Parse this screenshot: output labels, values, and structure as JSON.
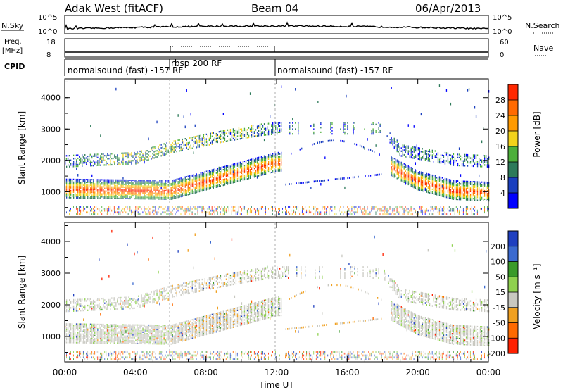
{
  "header": {
    "station": "Adak West (fitACF)",
    "beam": "Beam 04",
    "date": "06/Apr/2013"
  },
  "top_panels": {
    "nsky_label": "N.Sky",
    "nsky_ticks": [
      "10^5",
      "10^0"
    ],
    "nsearch_label": "N.Search",
    "freq_label": "Freq.",
    "freq_unit": "[MHz]",
    "freq_ticks": [
      "18",
      "8"
    ],
    "nave_label": "Nave",
    "nave_ticks": [
      "60",
      "0"
    ],
    "cpid_label": "CPID",
    "cpid_segments": [
      {
        "label": "normalsound (fast) -157 RF",
        "start_h": 0,
        "end_h": 12
      },
      {
        "label": "rbsp 200 RF",
        "start_h": 6,
        "end_h": 12
      },
      {
        "label": "normalsound (fast) -157 RF",
        "start_h": 12,
        "end_h": 24
      }
    ]
  },
  "x_axis": {
    "label": "Time UT",
    "ticks": [
      "00:00",
      "04:00",
      "08:00",
      "12:00",
      "16:00",
      "20:00",
      "00:00"
    ]
  },
  "power_panel": {
    "ylabel": "Slant Range [km]",
    "yticks": [
      "1000",
      "2000",
      "3000",
      "4000"
    ],
    "colorbar_label": "Power [dB]",
    "colorbar_ticks": [
      "4",
      "8",
      "12",
      "16",
      "20",
      "24",
      "28"
    ],
    "colors": [
      "#0000ff",
      "#1a3fbf",
      "#2d7a5a",
      "#4caf3a",
      "#f2d21b",
      "#ff9a00",
      "#ff6a00",
      "#ff2800"
    ]
  },
  "velocity_panel": {
    "ylabel": "Slant Range [km]",
    "yticks": [
      "1000",
      "2000",
      "3000",
      "4000"
    ],
    "colorbar_label": "Velocity [m s⁻¹]",
    "colorbar_ticks": [
      "200",
      "100",
      "50",
      "15",
      "-15",
      "-50",
      "-100",
      "-200"
    ],
    "colors": [
      "#1f3fbf",
      "#3b6ad0",
      "#3a9a2a",
      "#8fd14f",
      "#c8c8c0",
      "#f0a020",
      "#ff6a00",
      "#ff2000"
    ]
  },
  "chart_data": [
    {
      "type": "heatmap",
      "title": "Power",
      "xlabel": "Time UT",
      "ylabel": "Slant Range [km]",
      "xlim": [
        0,
        24
      ],
      "ylim": [
        200,
        4600
      ],
      "units": "dB",
      "bands": [
        {
          "name": "main",
          "range_km": [
            [
              0,
              1050
            ],
            [
              6,
              1000
            ],
            [
              8,
              1300
            ],
            [
              10,
              1600
            ],
            [
              12,
              1900
            ],
            [
              18,
              1900
            ],
            [
              20,
              1300
            ],
            [
              22,
              1000
            ],
            [
              24,
              950
            ]
          ]
        },
        {
          "name": "upper",
          "range_km": [
            [
              0,
              1950
            ],
            [
              4,
              2050
            ],
            [
              6,
              2400
            ],
            [
              9,
              2750
            ],
            [
              11,
              2950
            ],
            [
              12,
              3000
            ],
            [
              18,
              3000
            ],
            [
              19,
              2300
            ],
            [
              22,
              2000
            ],
            [
              24,
              1950
            ]
          ]
        }
      ]
    },
    {
      "type": "heatmap",
      "title": "Velocity",
      "xlabel": "Time UT",
      "ylabel": "Slant Range [km]",
      "xlim": [
        0,
        24
      ],
      "ylim": [
        200,
        4600
      ],
      "units": "m s⁻¹"
    }
  ]
}
